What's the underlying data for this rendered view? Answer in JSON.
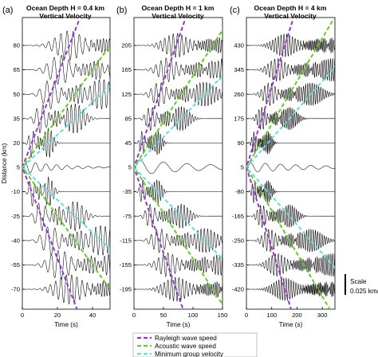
{
  "figure": {
    "legend": [
      {
        "label": "Rayleigh wave speed",
        "color": "#9933cc"
      },
      {
        "label": "Acoustic wave speed",
        "color": "#66cc22"
      },
      {
        "label": "Minimum group velocity",
        "color": "#66dddd"
      }
    ],
    "scale_bar": {
      "line1": "Scale",
      "line2": "0.025 km/s"
    }
  },
  "chart_data": [
    {
      "type": "line",
      "panel_label": "(a)",
      "title_line1": "Ocean Depth H = 0.4 km",
      "title_line2": "Vertical Velocity",
      "xlabel": "Time (s)",
      "ylabel": "Distance (km)",
      "xlim": [
        0,
        50
      ],
      "xticks": [
        "0",
        "20",
        "40"
      ],
      "xtick_values": [
        0,
        20,
        40
      ],
      "trace_offsets": [
        80,
        65,
        50,
        35,
        20,
        5,
        -10,
        -25,
        -40,
        -55,
        -70
      ],
      "trace_labels": [
        "80",
        "65",
        "50",
        "35",
        "20",
        "5",
        "-10",
        "-25",
        "-40",
        "-55",
        "-70"
      ],
      "source_offset": 5,
      "speed_lines": {
        "rayleigh": 2.8,
        "acoustic": 1.5,
        "min_group": 1.0
      },
      "wave": {
        "amp": 1.1,
        "period": 2.2
      },
      "coda": {
        "period": 6,
        "amp": 0.5,
        "decay": 20
      }
    },
    {
      "type": "line",
      "panel_label": "(b)",
      "title_line1": "Ocean Depth H = 1 km",
      "title_line2": "Vertical Velocity",
      "xlabel": "Time (s)",
      "ylabel": "",
      "xlim": [
        0,
        150
      ],
      "xticks": [
        "0",
        "50",
        "100",
        "150"
      ],
      "xtick_values": [
        0,
        50,
        100,
        150
      ],
      "trace_offsets": [
        205,
        165,
        125,
        85,
        45,
        5,
        -35,
        -75,
        -115,
        -155,
        -195
      ],
      "trace_labels": [
        "205",
        "165",
        "125",
        "85",
        "45",
        "5",
        "-35",
        "-75",
        "-115",
        "-155",
        "-195"
      ],
      "source_offset": 5,
      "speed_lines": {
        "rayleigh": 2.8,
        "acoustic": 1.5,
        "min_group": 1.0
      },
      "wave": {
        "amp": 0.9,
        "period": 4.5
      },
      "coda": {
        "period": 40,
        "amp": 0.6,
        "decay": 120
      }
    },
    {
      "type": "line",
      "panel_label": "(c)",
      "title_line1": "Ocean Depth H = 4 km",
      "title_line2": "Vertical Velocity",
      "xlabel": "Time (s)",
      "ylabel": "",
      "xlim": [
        0,
        350
      ],
      "xticks": [
        "0",
        "100",
        "200",
        "300"
      ],
      "xtick_values": [
        0,
        100,
        200,
        300
      ],
      "trace_offsets": [
        430,
        345,
        260,
        175,
        90,
        5,
        -80,
        -165,
        -250,
        -335,
        -420
      ],
      "trace_labels": [
        "430",
        "345",
        "260",
        "175",
        "90",
        "5",
        "-80",
        "-165",
        "-250",
        "-335",
        "-420"
      ],
      "source_offset": 5,
      "speed_lines": {
        "rayleigh": 2.8,
        "acoustic": 1.5,
        "min_group": 1.0
      },
      "wave": {
        "amp": 0.85,
        "period": 7
      },
      "coda": {
        "period": 60,
        "amp": 0.4,
        "decay": 260
      }
    }
  ]
}
